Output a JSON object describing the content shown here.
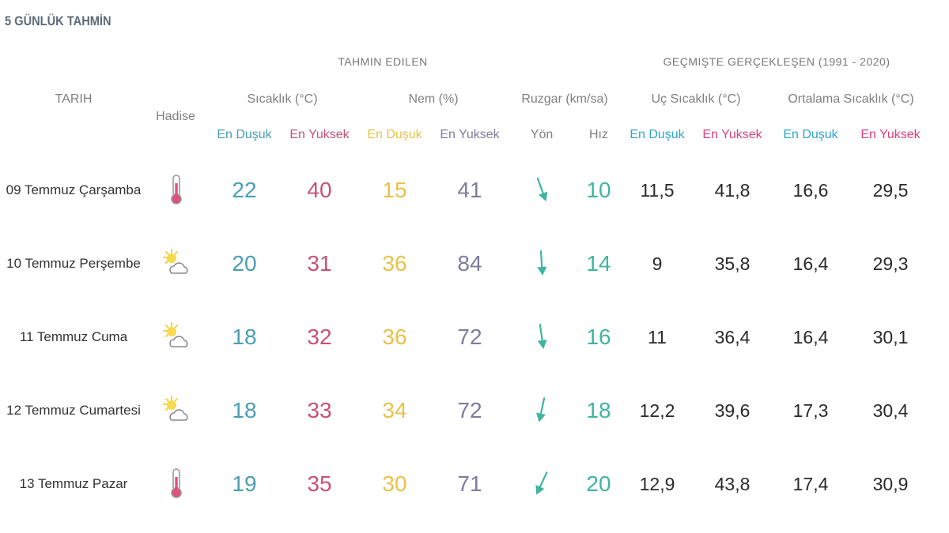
{
  "title": "5 GÜNLÜK TAHMİN",
  "headers": {
    "forecast_group": "TAHMIN EDILEN",
    "history_group": "GEÇMIŞTE GERÇEKLEŞEN (1991 - 2020)",
    "date": "TARIH",
    "phenomenon": "Hadise",
    "temperature": "Sıcaklık (°C)",
    "humidity": "Nem (%)",
    "wind": "Ruzgar (km/sa)",
    "extreme_temperature": "Uç Sıcaklık (°C)",
    "average_temperature": "Ortalama Sıcaklık (°C)",
    "min": "En Duşuk",
    "max": "En Yuksek",
    "direction": "Yön",
    "speed": "Hız"
  },
  "colors": {
    "min_blue": "#4a9eb3",
    "max_pink": "#c7517a",
    "humidity_min_yellow": "#e8c24a",
    "humidity_max_purple": "#7d7c9c",
    "wind_teal": "#3fb5a0",
    "hist_min_label": "#2da6c8",
    "hist_max_label": "#dd3e80"
  },
  "rows": [
    {
      "date": "09 Temmuz Çarşamba",
      "icon": "thermometer-hot-icon",
      "temp_min": "22",
      "temp_max": "40",
      "hum_min": "15",
      "hum_max": "41",
      "wind_direction": "south-southeast",
      "wind_rotation_deg": -20,
      "wind_speed": "10",
      "extreme_min": "11,5",
      "extreme_max": "41,8",
      "avg_min": "16,6",
      "avg_max": "29,5"
    },
    {
      "date": "10 Temmuz Perşembe",
      "icon": "partly-cloudy-icon",
      "temp_min": "20",
      "temp_max": "31",
      "hum_min": "36",
      "hum_max": "84",
      "wind_direction": "south",
      "wind_rotation_deg": -4,
      "wind_speed": "14",
      "extreme_min": "9",
      "extreme_max": "35,8",
      "avg_min": "16,4",
      "avg_max": "29,3"
    },
    {
      "date": "11 Temmuz Cuma",
      "icon": "partly-cloudy-icon",
      "temp_min": "18",
      "temp_max": "32",
      "hum_min": "36",
      "hum_max": "72",
      "wind_direction": "south",
      "wind_rotation_deg": -8,
      "wind_speed": "16",
      "extreme_min": "11",
      "extreme_max": "36,4",
      "avg_min": "16,4",
      "avg_max": "30,1"
    },
    {
      "date": "12 Temmuz Cumartesi",
      "icon": "partly-cloudy-icon",
      "temp_min": "18",
      "temp_max": "33",
      "hum_min": "34",
      "hum_max": "72",
      "wind_direction": "south-southwest",
      "wind_rotation_deg": 12,
      "wind_speed": "18",
      "extreme_min": "12,2",
      "extreme_max": "39,6",
      "avg_min": "17,3",
      "avg_max": "30,4"
    },
    {
      "date": "13 Temmuz Pazar",
      "icon": "thermometer-hot-icon",
      "temp_min": "19",
      "temp_max": "35",
      "hum_min": "30",
      "hum_max": "71",
      "wind_direction": "southwest",
      "wind_rotation_deg": 25,
      "wind_speed": "20",
      "extreme_min": "12,9",
      "extreme_max": "43,8",
      "avg_min": "17,4",
      "avg_max": "30,9"
    }
  ]
}
